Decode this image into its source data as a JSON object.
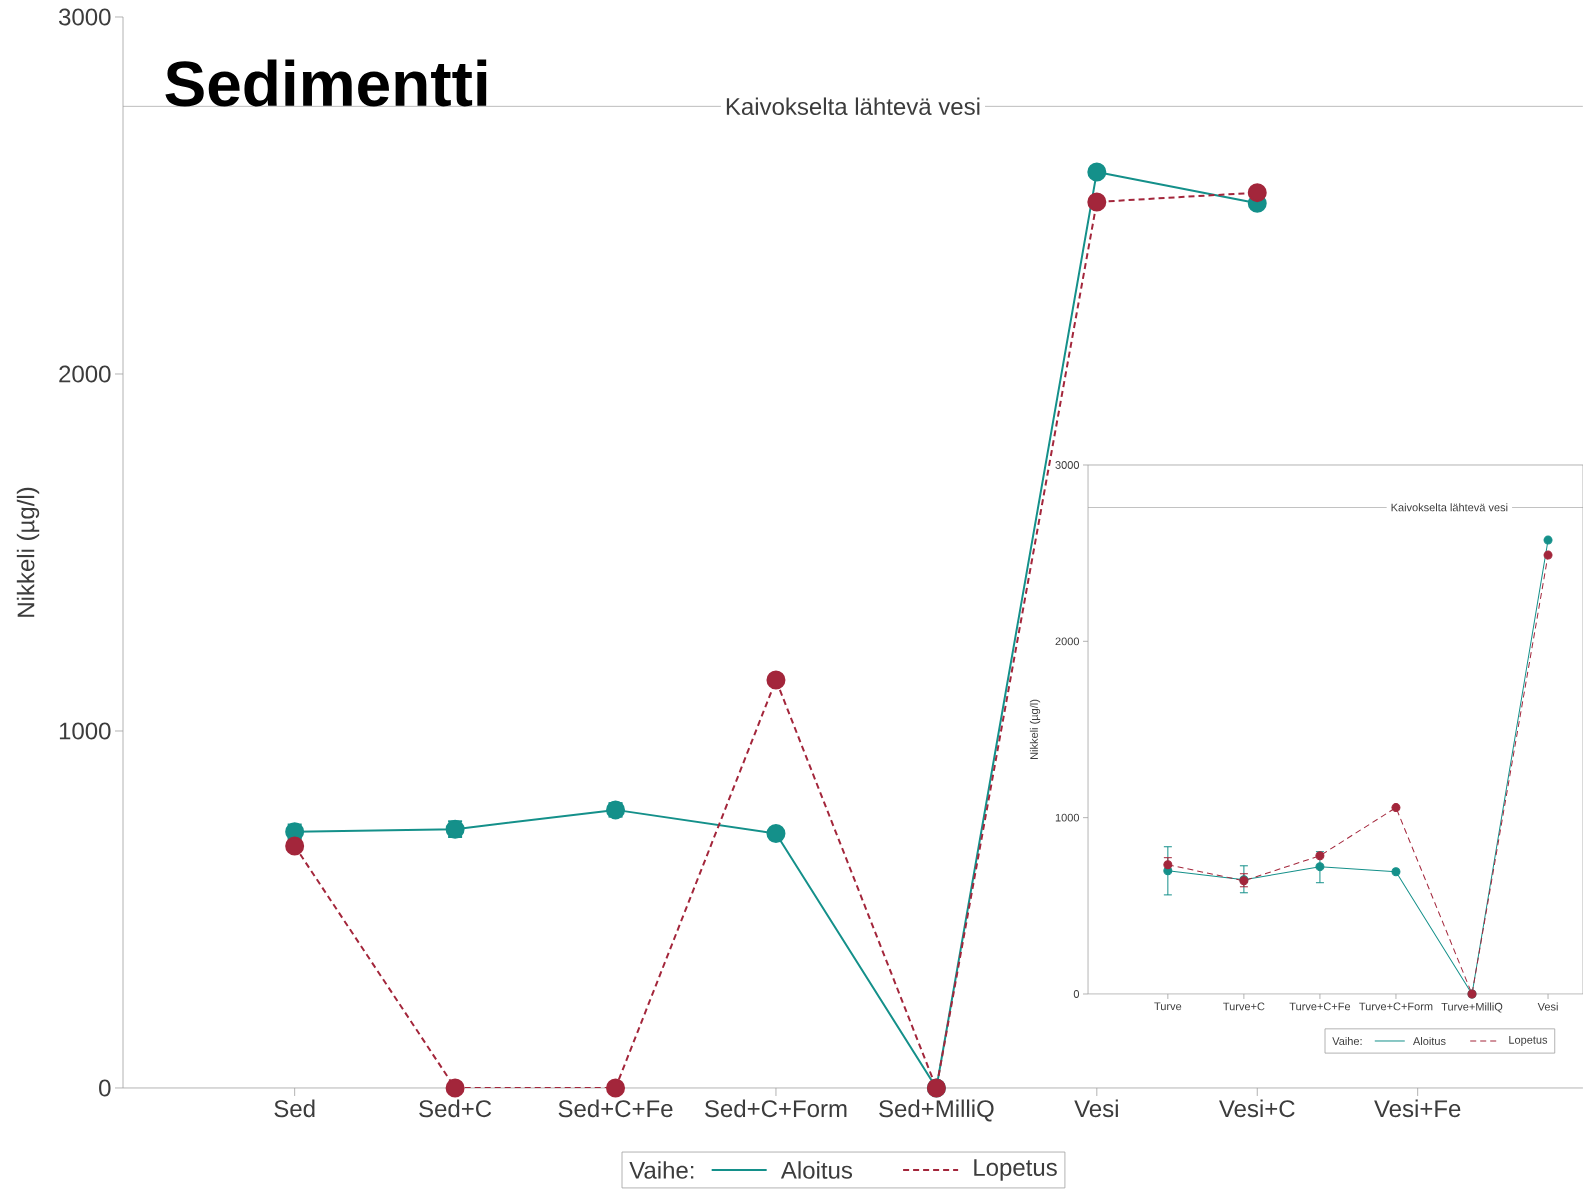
{
  "chart_data": [
    {
      "type": "line",
      "title": "Sedimentti",
      "ref_lines": [
        {
          "axis": "y",
          "value": 2750,
          "label": "Kaivokselta lähtevä vesi",
          "color": "#a0a0a0"
        }
      ],
      "ylabel": "Nikkeli (µg/l)",
      "legend_title": "Vaihe:",
      "legend": "bottom",
      "marker": "circle",
      "categories": [
        "Sed",
        "Sed+C",
        "Sed+C+Fe",
        "Sed+C+Form",
        "Sed+MilliQ",
        "Vesi",
        "Vesi+C",
        "Vesi+Fe"
      ],
      "ylim": [
        0,
        3000
      ],
      "yticks": [
        0,
        1000,
        2000,
        3000
      ],
      "series": [
        {
          "name": "Aloitus",
          "color": "#14908a",
          "line_style": "solid",
          "values": [
            718,
            725,
            779,
            713,
            0,
            2566,
            2478,
            null
          ],
          "errors": [
            20,
            22,
            19,
            null,
            null,
            null,
            null,
            null
          ]
        },
        {
          "name": "Lopetus",
          "color": "#a3263b",
          "line_style": "dashed",
          "values": [
            678,
            0,
            0,
            1143,
            0,
            2482,
            2508,
            null
          ]
        }
      ]
    },
    {
      "type": "line",
      "ref_lines": [
        {
          "axis": "y",
          "value": 2760,
          "label": "Kaivokselta lähtevä vesi",
          "color": "#a0a0a0"
        }
      ],
      "ylabel": "Nikkeli (µg/l)",
      "legend_title": "Vaihe:",
      "legend": "bottom right",
      "marker": "circle",
      "categories": [
        "Turve",
        "Turve+C",
        "Turve+C+Fe",
        "Turve+C+Form",
        "Turve+MilliQ",
        "Vesi"
      ],
      "ylim": [
        0,
        3000
      ],
      "yticks": [
        0,
        1000,
        2000,
        3000
      ],
      "series": [
        {
          "name": "Aloitus",
          "color": "#14908a",
          "line_style": "solid",
          "values": [
            699,
            648,
            722,
            693,
            0,
            2574
          ],
          "errors": [
            [
              562,
              835
            ],
            [
              574,
              727
            ],
            [
              631,
              807
            ],
            null,
            null,
            null
          ]
        },
        {
          "name": "Lopetus",
          "color": "#a3263b",
          "line_style": "dashed",
          "values": [
            733,
            642,
            784,
            1057,
            0,
            2489
          ],
          "errors": [
            40,
            [
              608,
              682
            ],
            null,
            null,
            null,
            null
          ]
        }
      ]
    }
  ]
}
